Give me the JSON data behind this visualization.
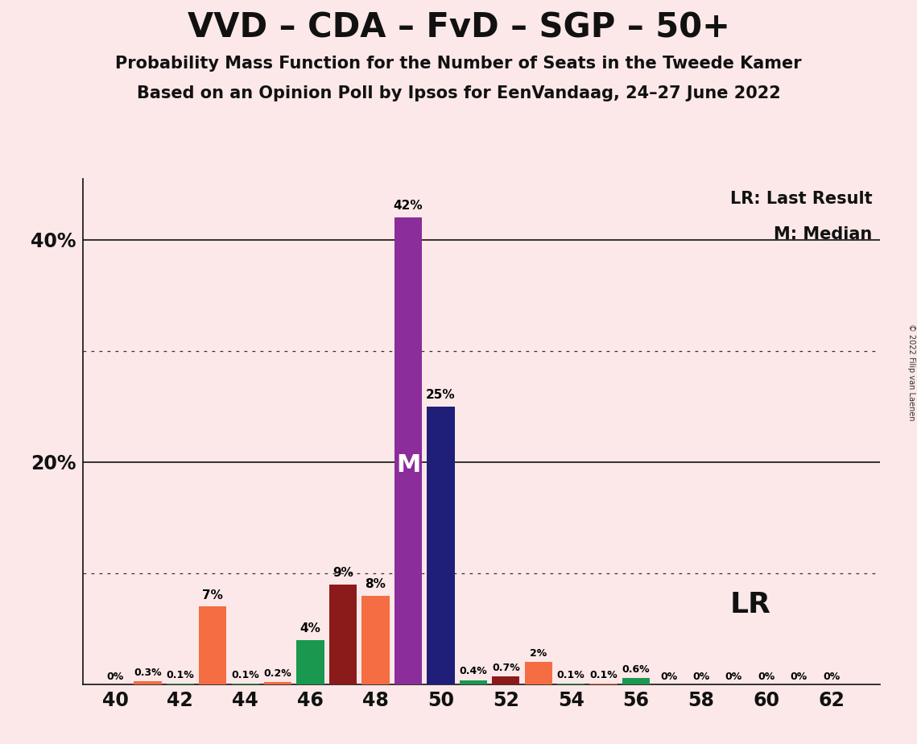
{
  "title": "VVD – CDA – FvD – SGP – 50+",
  "subtitle1": "Probability Mass Function for the Number of Seats in the Tweede Kamer",
  "subtitle2": "Based on an Opinion Poll by Ipsos for EenVandaag, 24–27 June 2022",
  "copyright": "© 2022 Filip van Laenen",
  "background_color": "#fce8e8",
  "x_min": 39.0,
  "x_max": 63.5,
  "y_min": 0,
  "y_max": 0.455,
  "yticks": [
    0.0,
    0.1,
    0.2,
    0.3,
    0.4
  ],
  "ytick_labels": [
    "",
    "",
    "20%",
    "",
    "40%"
  ],
  "xticks": [
    40,
    42,
    44,
    46,
    48,
    50,
    52,
    54,
    56,
    58,
    60,
    62
  ],
  "median_seat": 49,
  "lr_seat": 56,
  "dotted_lines": [
    0.1,
    0.3
  ],
  "solid_lines": [
    0.2,
    0.4
  ],
  "seats": [
    40,
    41,
    42,
    43,
    44,
    45,
    46,
    47,
    48,
    49,
    50,
    51,
    52,
    53,
    54,
    55,
    56,
    57,
    58,
    59,
    60,
    61,
    62
  ],
  "values": [
    0.0,
    0.003,
    0.001,
    0.07,
    0.001,
    0.002,
    0.04,
    0.09,
    0.08,
    0.42,
    0.25,
    0.004,
    0.007,
    0.02,
    0.001,
    0.001,
    0.006,
    0.0,
    0.0,
    0.0,
    0.0,
    0.0,
    0.0
  ],
  "colors": [
    "#1a9850",
    "#f46d43",
    "#1a9850",
    "#f46d43",
    "#1a9850",
    "#f46d43",
    "#1a9850",
    "#8b1a1a",
    "#f46d43",
    "#8b2d9b",
    "#1f1f7a",
    "#1a9850",
    "#8b1a1a",
    "#f46d43",
    "#1a9850",
    "#f46d43",
    "#1a9850",
    "#f46d43",
    "#1a9850",
    "#f46d43",
    "#1a9850",
    "#f46d43",
    "#1a9850"
  ],
  "labels": [
    "0%",
    "0.3%",
    "0.1%",
    "7%",
    "0.1%",
    "0.2%",
    "4%",
    "9%",
    "8%",
    "42%",
    "25%",
    "0.4%",
    "0.7%",
    "2%",
    "0.1%",
    "0.1%",
    "0.6%",
    "0%",
    "0%",
    "0%",
    "0%",
    "0%",
    "0%"
  ],
  "legend_lr": "LR: Last Result",
  "legend_m": "M: Median",
  "title_fontsize": 30,
  "subtitle_fontsize": 15,
  "tick_fontsize": 17,
  "bar_label_fontsize_large": 11,
  "bar_label_fontsize_small": 9,
  "legend_fontsize": 15,
  "lr_label_fontsize": 26,
  "m_label_fontsize": 22
}
